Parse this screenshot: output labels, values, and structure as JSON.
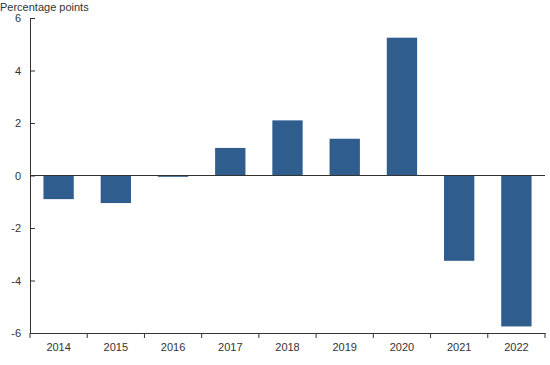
{
  "chart_data": {
    "type": "bar",
    "y_label": "Percentage points",
    "categories": [
      "2014",
      "2015",
      "2016",
      "2017",
      "2018",
      "2019",
      "2020",
      "2021",
      "2022"
    ],
    "values": [
      -0.9,
      -1.05,
      -0.05,
      1.05,
      2.1,
      1.4,
      5.25,
      -3.25,
      -5.75
    ],
    "color": "#2f5d8e",
    "ylim": [
      -6,
      6
    ],
    "yticks": [
      -6,
      -4,
      -2,
      0,
      2,
      4,
      6
    ],
    "grid": false
  }
}
